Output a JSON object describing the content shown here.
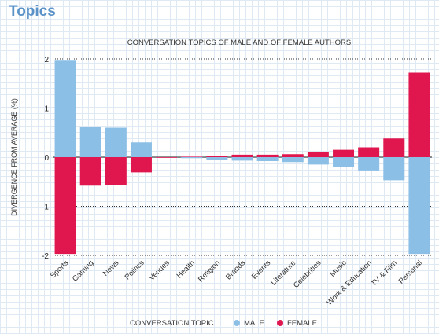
{
  "page": {
    "heading": "Topics"
  },
  "chart_data": {
    "type": "bar",
    "title": "CONVERSATION TOPICS OF MALE AND OF FEMALE AUTHORS",
    "xlabel": "CONVERSATION TOPIC",
    "ylabel": "DIVERGENCE FROM AVERAGE (%)",
    "ylim": [
      -2,
      2
    ],
    "yticks": [
      2,
      1,
      0,
      -1,
      -2
    ],
    "grid": "horizontal dotted",
    "legend_placement": "bottom",
    "categories": [
      "Sports",
      "Gaming",
      "News",
      "Politics",
      "Venues",
      "Health",
      "Religion",
      "Brands",
      "Events",
      "Literature",
      "Celebrities",
      "Music",
      "Work & Education",
      "TV & Film",
      "Personal"
    ],
    "series": [
      {
        "name": "MALE",
        "color": "#8cbfe6",
        "values": [
          1.98,
          0.62,
          0.6,
          0.3,
          -0.01,
          -0.02,
          -0.05,
          -0.07,
          -0.08,
          -0.1,
          -0.15,
          -0.2,
          -0.27,
          -0.47,
          -1.97
        ]
      },
      {
        "name": "FEMALE",
        "color": "#e0174f",
        "values": [
          -1.97,
          -0.58,
          -0.57,
          -0.31,
          0.0,
          0.01,
          0.03,
          0.05,
          0.05,
          0.06,
          0.11,
          0.15,
          0.2,
          0.38,
          1.72
        ]
      }
    ]
  }
}
